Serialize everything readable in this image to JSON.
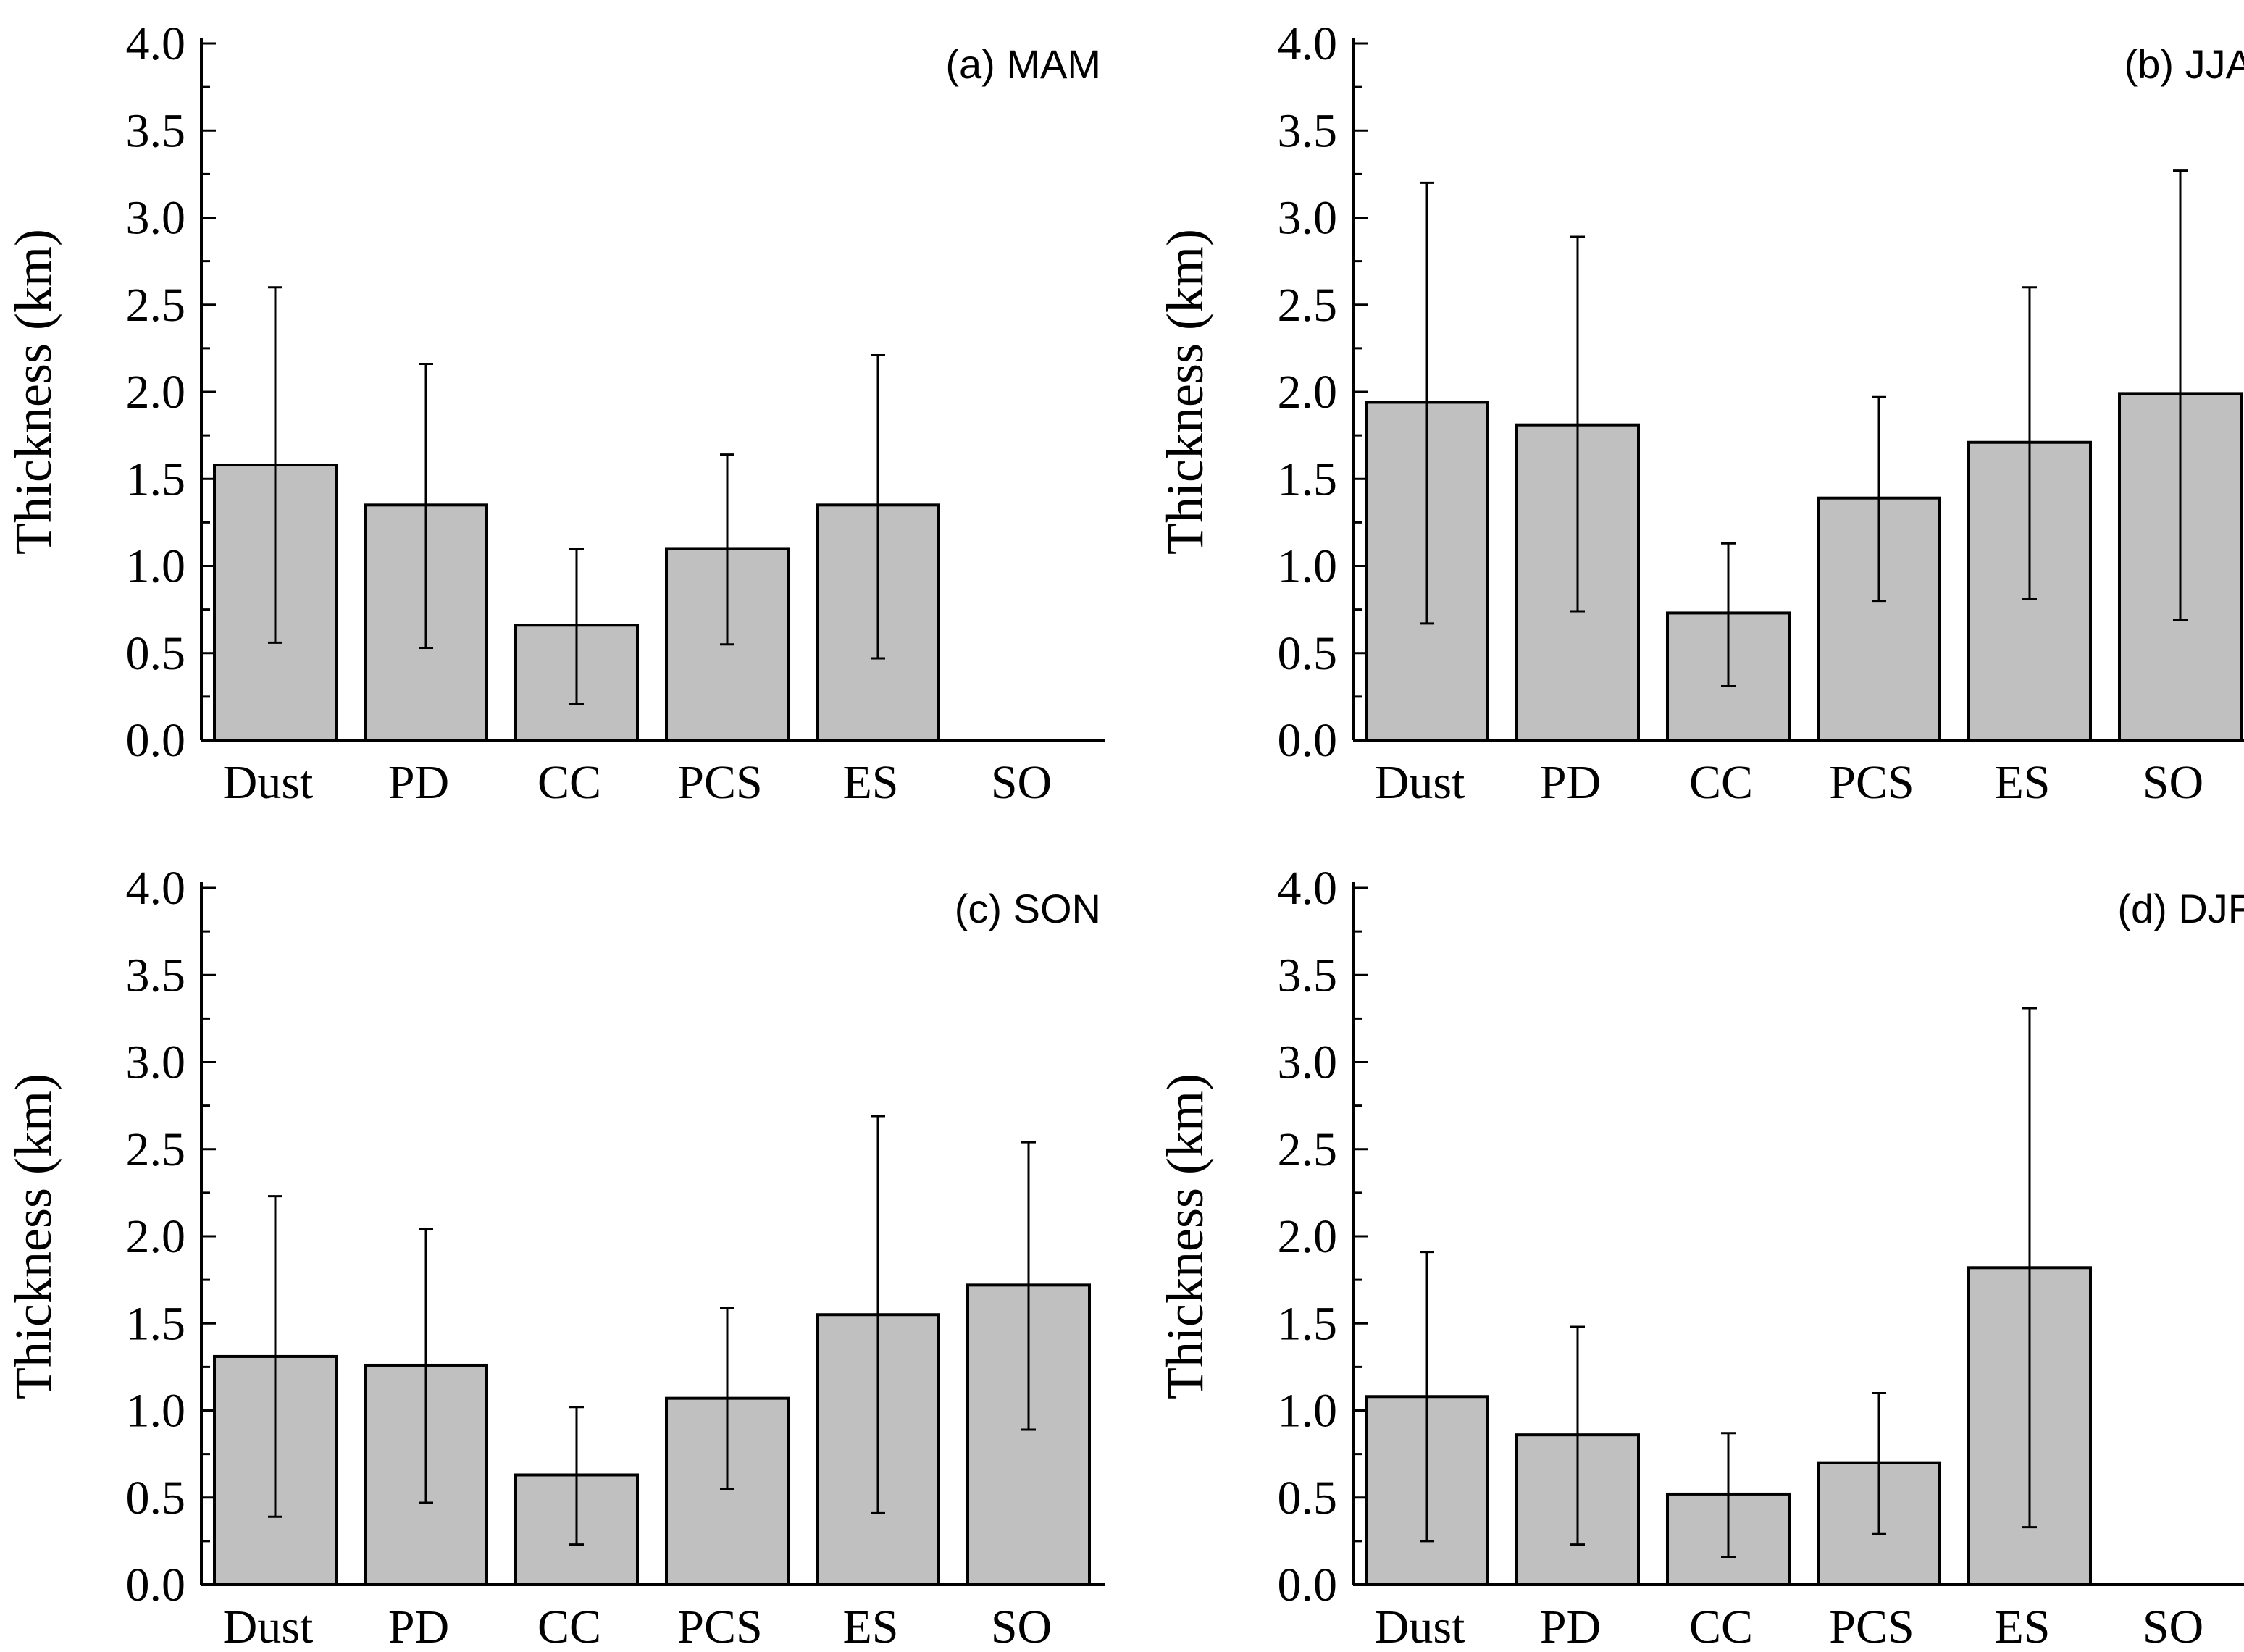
{
  "chart_data": [
    {
      "type": "bar",
      "title": "(a) MAM",
      "ylabel": "Thickness (km)",
      "xlabel": "",
      "ylim": [
        0,
        4.0
      ],
      "yticks": [
        "0.0",
        "0.5",
        "1.0",
        "1.5",
        "2.0",
        "2.5",
        "3.0",
        "3.5",
        "4.0"
      ],
      "categories": [
        "Dust",
        "PD",
        "CC",
        "PCS",
        "ES",
        "SO"
      ],
      "values": [
        1.58,
        1.35,
        0.66,
        1.1,
        1.35,
        null
      ],
      "err_low": [
        0.56,
        0.53,
        0.21,
        0.55,
        0.47,
        null
      ],
      "err_high": [
        2.6,
        2.16,
        1.1,
        1.64,
        2.21,
        null
      ],
      "bar_color": "#c0c0c0"
    },
    {
      "type": "bar",
      "title": "(b) JJA",
      "ylabel": "Thickness (km)",
      "xlabel": "",
      "ylim": [
        0,
        4.0
      ],
      "yticks": [
        "0.0",
        "0.5",
        "1.0",
        "1.5",
        "2.0",
        "2.5",
        "3.0",
        "3.5",
        "4.0"
      ],
      "categories": [
        "Dust",
        "PD",
        "CC",
        "PCS",
        "ES",
        "SO"
      ],
      "values": [
        1.94,
        1.81,
        0.73,
        1.39,
        1.71,
        1.99
      ],
      "err_low": [
        0.67,
        0.74,
        0.31,
        0.8,
        0.81,
        0.69
      ],
      "err_high": [
        3.2,
        2.89,
        1.13,
        1.97,
        2.6,
        3.27
      ],
      "bar_color": "#c0c0c0"
    },
    {
      "type": "bar",
      "title": "(c) SON",
      "ylabel": "Thickness (km)",
      "xlabel": "",
      "ylim": [
        0,
        4.0
      ],
      "yticks": [
        "0.0",
        "0.5",
        "1.0",
        "1.5",
        "2.0",
        "2.5",
        "3.0",
        "3.5",
        "4.0"
      ],
      "categories": [
        "Dust",
        "PD",
        "CC",
        "PCS",
        "ES",
        "SO"
      ],
      "values": [
        1.31,
        1.26,
        0.63,
        1.07,
        1.55,
        1.72
      ],
      "err_low": [
        0.39,
        0.47,
        0.23,
        0.55,
        0.41,
        0.89
      ],
      "err_high": [
        2.23,
        2.04,
        1.02,
        1.59,
        2.69,
        2.54
      ],
      "bar_color": "#c0c0c0"
    },
    {
      "type": "bar",
      "title": "(d) DJF",
      "ylabel": "Thickness (km)",
      "xlabel": "",
      "ylim": [
        0,
        4.0
      ],
      "yticks": [
        "0.0",
        "0.5",
        "1.0",
        "1.5",
        "2.0",
        "2.5",
        "3.0",
        "3.5",
        "4.0"
      ],
      "categories": [
        "Dust",
        "PD",
        "CC",
        "PCS",
        "ES",
        "SO"
      ],
      "values": [
        1.08,
        0.86,
        0.52,
        0.7,
        1.82,
        null
      ],
      "err_low": [
        0.25,
        0.23,
        0.16,
        0.29,
        0.33,
        null
      ],
      "err_high": [
        1.91,
        1.48,
        0.87,
        1.1,
        3.31,
        null
      ],
      "bar_color": "#c0c0c0"
    }
  ]
}
